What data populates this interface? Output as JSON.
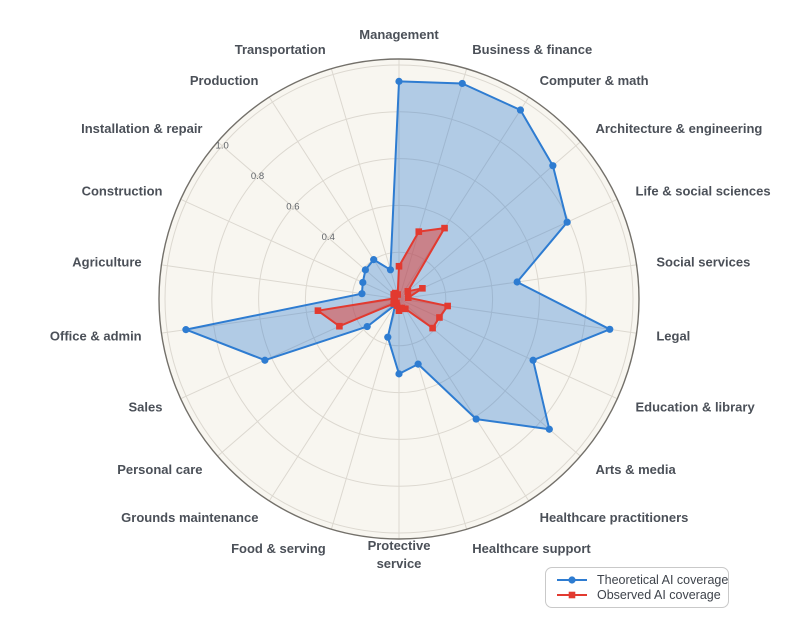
{
  "chart_data": {
    "type": "radar",
    "title": "",
    "categories": [
      "Management",
      "Business & finance",
      "Computer & math",
      "Architecture & engineering",
      "Life & social sciences",
      "Social services",
      "Legal",
      "Education & library",
      "Arts & media",
      "Healthcare practitioners",
      "Healthcare support",
      "Protective service",
      "Food & serving",
      "Grounds maintenance",
      "Personal care",
      "Sales",
      "Office & admin",
      "Agriculture",
      "Construction",
      "Installation & repair",
      "Production",
      "Transportation"
    ],
    "series": [
      {
        "name": "Theoretical AI coverage",
        "marker": "circle",
        "color": "#2e7cd1",
        "fill_opacity": 0.35,
        "values": [
          0.93,
          0.96,
          0.96,
          0.87,
          0.79,
          0.51,
          0.91,
          0.63,
          0.85,
          0.61,
          0.29,
          0.32,
          0.17,
          0.03,
          0.18,
          0.63,
          0.92,
          0.16,
          0.17,
          0.19,
          0.2,
          0.13
        ]
      },
      {
        "name": "Observed AI coverage",
        "marker": "square",
        "color": "#e23a30",
        "fill_opacity": 0.5,
        "values": [
          0.14,
          0.3,
          0.36,
          0.05,
          0.11,
          0.04,
          0.21,
          0.19,
          0.19,
          0.05,
          0.04,
          0.05,
          0.03,
          0.02,
          0.03,
          0.28,
          0.35,
          0.02,
          0.02,
          0.03,
          0.03,
          0.02
        ]
      }
    ],
    "radial_axis": {
      "tick_labels": [
        "0.4",
        "0.6",
        "0.8",
        "1.0"
      ],
      "tick_values": [
        0.4,
        0.6,
        0.8,
        1.0
      ],
      "rings": [
        0.2,
        0.4,
        0.6,
        0.8,
        1.0
      ],
      "max": 1.0,
      "tick_angle_category": "Installation & repair"
    },
    "grid": true,
    "legend_position": "bottom-right",
    "wrapped_labels": [
      "Protective service"
    ],
    "colors": {
      "page_background": "#ffffff",
      "plot_background": "#f8f6f0",
      "grid": "#dcd8d0",
      "spine": "#73706a",
      "label_text": "#4b5058",
      "tick_text": "#5f6368",
      "legend_text": "#3e434b",
      "legend_border": "#c9c9c9"
    }
  }
}
